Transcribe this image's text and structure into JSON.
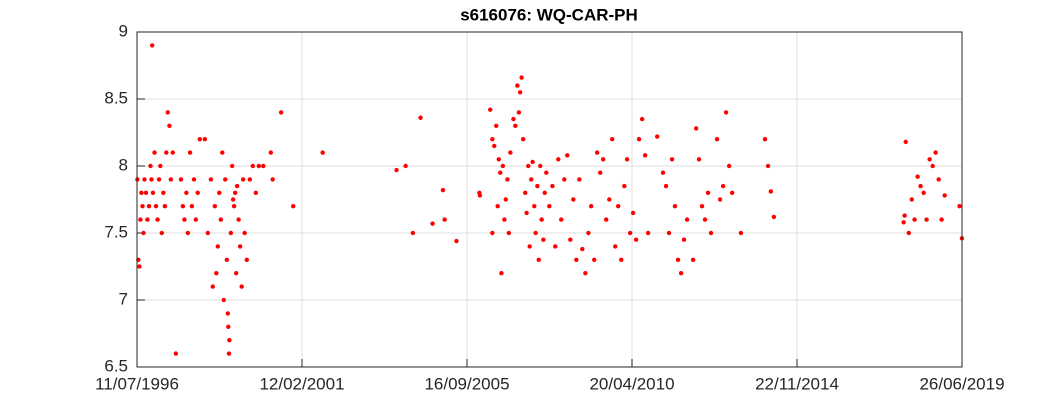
{
  "chart_data": {
    "type": "scatter",
    "title": "s616076: WQ-CAR-PH",
    "color": "#ff0000",
    "grid": true,
    "xlim": [
      "1996-07-11",
      "2019-06-26"
    ],
    "xticks": [
      {
        "value": "1996-07-11",
        "label": "11/07/1996"
      },
      {
        "value": "2001-02-12",
        "label": "12/02/2001"
      },
      {
        "value": "2005-09-16",
        "label": "16/09/2005"
      },
      {
        "value": "2010-04-20",
        "label": "20/04/2010"
      },
      {
        "value": "2014-11-22",
        "label": "22/11/2014"
      },
      {
        "value": "2019-06-26",
        "label": "26/06/2019"
      }
    ],
    "ylim": [
      6.5,
      9
    ],
    "yticks": [
      6.5,
      7,
      7.5,
      8,
      8.5,
      9
    ],
    "x": [
      "1996-07-15",
      "1996-07-25",
      "1996-08-05",
      "1996-08-15",
      "1996-08-25",
      "1996-09-05",
      "1996-09-15",
      "1996-09-25",
      "1996-10-10",
      "1996-10-25",
      "1996-11-10",
      "1996-11-25",
      "1996-12-05",
      "1996-12-12",
      "1996-12-20",
      "1997-01-05",
      "1997-01-20",
      "1997-02-05",
      "1997-02-20",
      "1997-03-05",
      "1997-03-20",
      "1997-04-05",
      "1997-04-20",
      "1997-05-05",
      "1997-05-20",
      "1997-06-05",
      "1997-06-20",
      "1997-07-10",
      "1997-08-10",
      "1997-10-01",
      "1997-10-20",
      "1997-11-05",
      "1997-11-25",
      "1997-12-10",
      "1998-01-01",
      "1998-01-20",
      "1998-02-10",
      "1998-03-01",
      "1998-03-20",
      "1998-04-10",
      "1998-06-01",
      "1998-07-01",
      "1998-08-01",
      "1998-08-20",
      "1998-09-10",
      "1998-09-25",
      "1998-10-10",
      "1998-10-25",
      "1998-11-10",
      "1998-11-25",
      "1998-12-10",
      "1998-12-25",
      "1999-01-10",
      "1999-01-20",
      "1999-01-25",
      "1999-02-01",
      "1999-02-05",
      "1999-02-20",
      "1999-03-05",
      "1999-03-15",
      "1999-03-25",
      "1999-04-05",
      "1999-04-15",
      "1999-04-25",
      "1999-05-10",
      "1999-05-25",
      "1999-06-10",
      "1999-06-25",
      "1999-07-10",
      "1999-08-01",
      "1999-09-01",
      "1999-10-01",
      "1999-11-01",
      "1999-12-01",
      "2000-01-15",
      "2000-04-01",
      "2000-04-20",
      "2000-07-15",
      "2000-11-15",
      "2001-09-10",
      "2003-10-01",
      "2004-01-01",
      "2004-03-15",
      "2004-06-01",
      "2004-10-01",
      "2005-01-15",
      "2005-02-01",
      "2005-06-01",
      "2006-06-01",
      "2006-01-20",
      "2006-01-25",
      "2006-05-10",
      "2006-06-01",
      "2006-06-20",
      "2006-07-10",
      "2006-07-25",
      "2006-08-05",
      "2006-08-20",
      "2006-09-01",
      "2006-09-15",
      "2006-10-01",
      "2006-10-15",
      "2006-11-01",
      "2006-11-15",
      "2006-12-01",
      "2007-01-01",
      "2007-01-20",
      "2007-02-10",
      "2007-02-25",
      "2007-03-10",
      "2007-03-25",
      "2007-04-10",
      "2007-05-01",
      "2007-05-15",
      "2007-06-01",
      "2007-06-15",
      "2007-07-01",
      "2007-07-15",
      "2007-08-01",
      "2007-08-15",
      "2007-09-01",
      "2007-09-15",
      "2007-10-01",
      "2007-10-15",
      "2007-11-01",
      "2007-11-15",
      "2007-12-01",
      "2008-01-01",
      "2008-02-01",
      "2008-03-01",
      "2008-04-01",
      "2008-05-01",
      "2008-06-01",
      "2008-07-01",
      "2008-08-01",
      "2008-09-01",
      "2008-10-01",
      "2008-11-01",
      "2008-12-01",
      "2009-01-01",
      "2009-02-01",
      "2009-03-01",
      "2009-04-01",
      "2009-05-01",
      "2009-06-01",
      "2009-07-01",
      "2009-08-01",
      "2009-09-01",
      "2009-10-01",
      "2009-11-01",
      "2009-12-01",
      "2010-01-01",
      "2010-02-01",
      "2010-03-01",
      "2010-04-01",
      "2010-05-01",
      "2010-06-01",
      "2010-07-01",
      "2010-08-01",
      "2010-09-01",
      "2010-10-01",
      "2011-01-01",
      "2011-03-01",
      "2011-04-01",
      "2011-05-01",
      "2011-06-01",
      "2011-07-01",
      "2011-08-01",
      "2011-09-01",
      "2011-10-01",
      "2011-11-01",
      "2012-01-01",
      "2012-02-01",
      "2012-03-01",
      "2012-04-01",
      "2012-05-01",
      "2012-06-01",
      "2012-07-01",
      "2012-09-01",
      "2012-10-01",
      "2012-11-01",
      "2012-12-01",
      "2013-01-01",
      "2013-02-01",
      "2013-05-01",
      "2014-01-01",
      "2014-02-01",
      "2014-03-01",
      "2014-04-01",
      "2017-11-10",
      "2017-11-20",
      "2017-12-01",
      "2018-01-01",
      "2018-02-01",
      "2018-03-01",
      "2018-04-01",
      "2018-05-01",
      "2018-06-01",
      "2018-07-01",
      "2018-08-01",
      "2018-09-01",
      "2018-10-01",
      "2018-11-01",
      "2018-12-01",
      "2019-01-01",
      "2019-06-01",
      "2019-06-25"
    ],
    "values": [
      7.9,
      7.3,
      7.25,
      7.6,
      7.8,
      7.7,
      7.5,
      7.9,
      7.8,
      7.6,
      7.7,
      8.0,
      7.9,
      8.9,
      7.8,
      8.1,
      7.7,
      7.6,
      7.9,
      8.0,
      7.5,
      7.8,
      7.7,
      8.1,
      8.4,
      8.3,
      7.9,
      8.1,
      6.6,
      7.9,
      7.7,
      7.6,
      7.8,
      7.5,
      8.1,
      7.7,
      7.9,
      7.6,
      7.8,
      8.2,
      8.2,
      7.5,
      7.9,
      7.1,
      7.7,
      7.2,
      7.4,
      7.8,
      7.6,
      8.1,
      7.0,
      7.9,
      7.3,
      6.9,
      6.8,
      6.6,
      6.7,
      7.5,
      8.0,
      7.75,
      7.7,
      7.8,
      7.2,
      7.85,
      7.6,
      7.4,
      7.1,
      7.9,
      7.5,
      7.3,
      7.9,
      8.0,
      7.8,
      8.0,
      8.0,
      8.1,
      7.9,
      8.4,
      7.7,
      8.1,
      7.97,
      8.0,
      7.5,
      8.36,
      7.57,
      7.82,
      7.6,
      7.44,
      7.5,
      7.8,
      7.78,
      8.42,
      8.2,
      8.15,
      8.3,
      7.7,
      8.05,
      7.95,
      7.2,
      8.0,
      7.6,
      7.75,
      7.9,
      7.5,
      8.1,
      8.35,
      8.3,
      8.6,
      8.4,
      8.55,
      8.66,
      8.2,
      7.8,
      7.65,
      8.0,
      7.4,
      7.9,
      8.03,
      7.7,
      7.5,
      7.85,
      7.3,
      8.0,
      7.6,
      7.45,
      7.8,
      7.95,
      7.7,
      7.85,
      7.4,
      8.05,
      7.6,
      7.9,
      8.08,
      7.45,
      7.75,
      7.3,
      7.9,
      7.38,
      7.2,
      7.5,
      7.7,
      7.3,
      8.1,
      7.95,
      8.05,
      7.6,
      7.75,
      8.2,
      7.4,
      7.7,
      7.3,
      7.85,
      8.05,
      7.5,
      7.65,
      7.45,
      8.2,
      8.35,
      8.08,
      7.5,
      8.22,
      7.95,
      7.85,
      7.5,
      8.05,
      7.7,
      7.3,
      7.2,
      7.45,
      7.6,
      7.3,
      8.28,
      8.05,
      7.7,
      7.6,
      7.8,
      7.5,
      8.2,
      7.75,
      7.85,
      8.4,
      8.0,
      7.8,
      7.5,
      8.2,
      8.0,
      7.81,
      7.62,
      7.58,
      7.63,
      8.18,
      7.5,
      7.75,
      7.6,
      7.92,
      7.85,
      7.8,
      7.6,
      8.05,
      8.0,
      8.1,
      7.9,
      7.6,
      7.78,
      7.7,
      7.46
    ]
  }
}
